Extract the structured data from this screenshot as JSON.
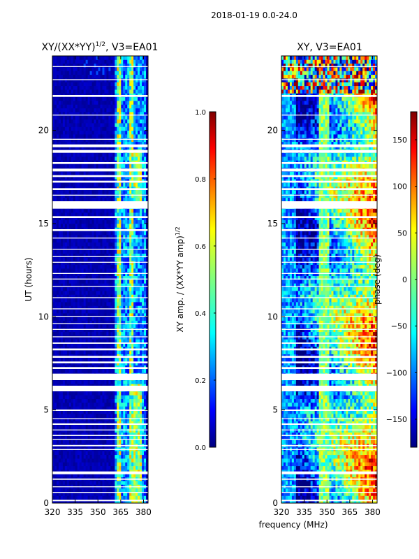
{
  "figure_title": "2018-01-19 0.0-24.0",
  "shared_xlabel": "frequency (MHz)",
  "chart_data": [
    {
      "type": "heatmap",
      "title_main": "XY/(XX*YY)",
      "title_sup": "1/2",
      "title_suffix": ", V3=EA01",
      "ylabel": "UT (hours)",
      "xlim": [
        320,
        383
      ],
      "ylim": [
        0,
        24
      ],
      "xticks": [
        "320",
        "335",
        "350",
        "365",
        "380"
      ],
      "xtick_values": [
        320,
        335,
        350,
        365,
        380
      ],
      "yticks": [
        "0",
        "5",
        "10",
        "15",
        "20"
      ],
      "ytick_values": [
        0,
        5,
        10,
        15,
        20
      ],
      "colorbar": {
        "label_main": "XY amp. / (XX*YY amp)",
        "label_sup": "1/2",
        "range": [
          0.0,
          1.0
        ],
        "ticks": [
          "0.0",
          "0.2",
          "0.4",
          "0.6",
          "0.8",
          "1.0"
        ],
        "tick_values": [
          0.0,
          0.2,
          0.4,
          0.6,
          0.8,
          1.0
        ]
      },
      "colormap": [
        "#00007f",
        "#0000ff",
        "#007fff",
        "#00ffff",
        "#7fff7f",
        "#ffff00",
        "#ff7f00",
        "#ff0000",
        "#7f0000"
      ],
      "flagged_hour_ranges": [
        [
          0.1,
          0.18
        ],
        [
          0.55,
          0.6
        ],
        [
          0.85,
          0.9
        ],
        [
          1.25,
          1.32
        ],
        [
          1.55,
          1.7
        ],
        [
          2.85,
          2.9
        ],
        [
          3.05,
          3.12
        ],
        [
          3.4,
          3.45
        ],
        [
          3.6,
          3.66
        ],
        [
          3.9,
          3.95
        ],
        [
          4.2,
          4.28
        ],
        [
          4.5,
          4.55
        ],
        [
          4.95,
          5.02
        ],
        [
          6.0,
          6.3
        ],
        [
          6.6,
          6.95
        ],
        [
          7.2,
          7.3
        ],
        [
          7.5,
          7.6
        ],
        [
          7.8,
          7.9
        ],
        [
          8.2,
          8.3
        ],
        [
          8.55,
          8.62
        ],
        [
          8.9,
          8.95
        ],
        [
          9.3,
          9.35
        ],
        [
          9.6,
          9.65
        ],
        [
          10.0,
          10.05
        ],
        [
          10.4,
          10.45
        ],
        [
          11.0,
          11.05
        ],
        [
          11.6,
          11.65
        ],
        [
          12.0,
          12.05
        ],
        [
          12.3,
          12.35
        ],
        [
          12.9,
          12.95
        ],
        [
          13.2,
          13.25
        ],
        [
          13.6,
          13.65
        ],
        [
          14.2,
          14.25
        ],
        [
          14.6,
          14.7
        ],
        [
          15.3,
          15.4
        ],
        [
          15.8,
          16.2
        ],
        [
          16.5,
          16.55
        ],
        [
          16.8,
          16.9
        ],
        [
          17.2,
          17.3
        ],
        [
          17.5,
          17.6
        ],
        [
          17.8,
          17.95
        ],
        [
          18.2,
          18.3
        ],
        [
          18.8,
          18.95
        ],
        [
          19.1,
          19.25
        ],
        [
          19.5,
          19.55
        ],
        [
          20.8,
          20.85
        ],
        [
          21.8,
          21.9
        ],
        [
          22.7,
          22.75
        ],
        [
          23.4,
          23.45
        ]
      ]
    },
    {
      "type": "heatmap",
      "title_main": "XY, V3=EA01",
      "xlim": [
        320,
        383
      ],
      "ylim": [
        0,
        24
      ],
      "xticks": [
        "320",
        "335",
        "350",
        "365",
        "380"
      ],
      "xtick_values": [
        320,
        335,
        350,
        365,
        380
      ],
      "yticks": [
        "0",
        "5",
        "10",
        "15",
        "20"
      ],
      "ytick_values": [
        0,
        5,
        10,
        15,
        20
      ],
      "colorbar": {
        "label_main": "phase (deg)",
        "range": [
          -180,
          180
        ],
        "ticks": [
          "150",
          "100",
          "50",
          "0",
          "−50",
          "−100",
          "−150"
        ],
        "tick_values": [
          150,
          100,
          50,
          0,
          -50,
          -100,
          -150
        ]
      },
      "colormap": [
        "#00007f",
        "#0000ff",
        "#007fff",
        "#00ffff",
        "#7fff7f",
        "#ffff00",
        "#ff7f00",
        "#ff0000",
        "#7f0000"
      ],
      "flagged_hour_ranges": [
        [
          0.1,
          0.18
        ],
        [
          0.55,
          0.6
        ],
        [
          0.85,
          0.9
        ],
        [
          1.25,
          1.32
        ],
        [
          1.55,
          1.7
        ],
        [
          2.85,
          2.9
        ],
        [
          3.05,
          3.12
        ],
        [
          3.4,
          3.45
        ],
        [
          3.6,
          3.66
        ],
        [
          3.9,
          3.95
        ],
        [
          4.2,
          4.28
        ],
        [
          4.5,
          4.55
        ],
        [
          4.95,
          5.02
        ],
        [
          6.0,
          6.3
        ],
        [
          6.6,
          6.95
        ],
        [
          7.2,
          7.3
        ],
        [
          7.5,
          7.6
        ],
        [
          7.8,
          7.9
        ],
        [
          8.2,
          8.3
        ],
        [
          8.55,
          8.62
        ],
        [
          8.9,
          8.95
        ],
        [
          9.3,
          9.35
        ],
        [
          9.6,
          9.65
        ],
        [
          10.0,
          10.05
        ],
        [
          10.4,
          10.45
        ],
        [
          11.0,
          11.05
        ],
        [
          11.6,
          11.65
        ],
        [
          12.0,
          12.05
        ],
        [
          12.3,
          12.35
        ],
        [
          12.9,
          12.95
        ],
        [
          13.2,
          13.25
        ],
        [
          13.6,
          13.65
        ],
        [
          14.2,
          14.25
        ],
        [
          14.6,
          14.7
        ],
        [
          15.3,
          15.4
        ],
        [
          15.8,
          16.2
        ],
        [
          16.5,
          16.55
        ],
        [
          16.8,
          16.9
        ],
        [
          17.2,
          17.3
        ],
        [
          17.5,
          17.6
        ],
        [
          17.8,
          17.95
        ],
        [
          18.2,
          18.3
        ],
        [
          18.8,
          18.95
        ],
        [
          19.1,
          19.25
        ],
        [
          19.5,
          19.55
        ],
        [
          20.8,
          20.85
        ],
        [
          21.8,
          21.9
        ],
        [
          22.7,
          22.75
        ],
        [
          23.4,
          23.45
        ]
      ]
    }
  ]
}
